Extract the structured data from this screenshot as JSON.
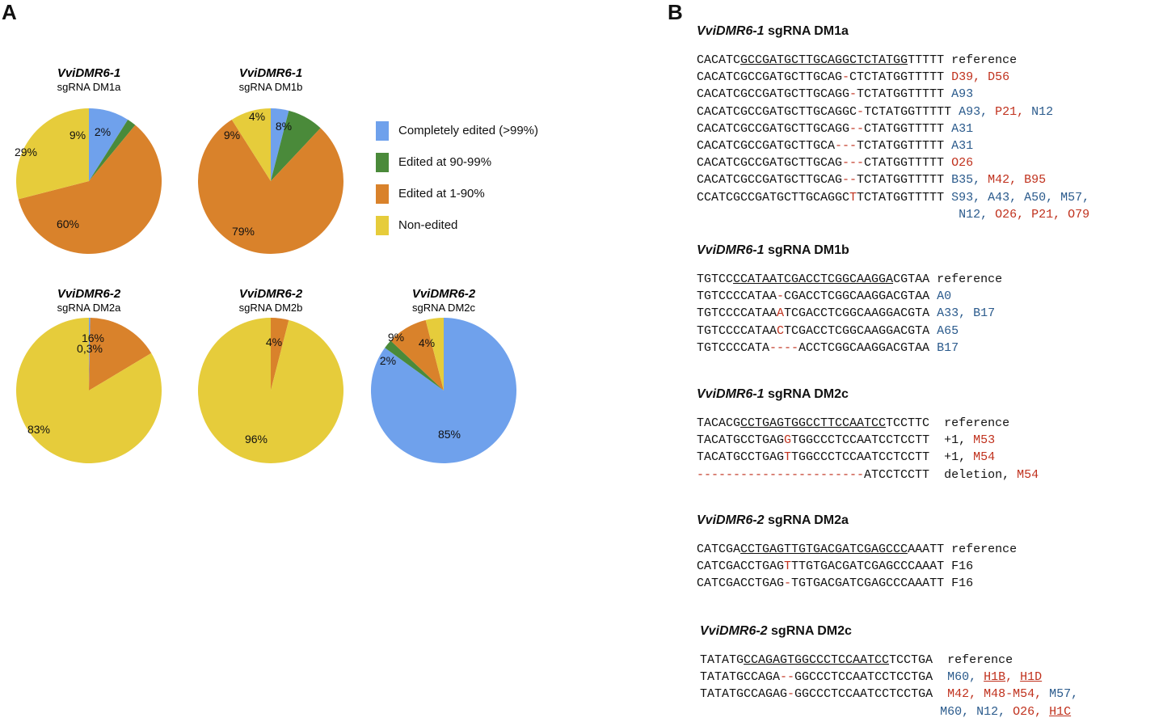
{
  "panels": {
    "a": "A",
    "b": "B"
  },
  "legend": [
    {
      "label": "Completely edited (>99%)",
      "color": "#6fa1ec"
    },
    {
      "label": "Edited at 90-99%",
      "color": "#4a8a3a"
    },
    {
      "label": "Edited at 1-90%",
      "color": "#d9822b"
    },
    {
      "label": "Non-edited",
      "color": "#e6cc3b"
    }
  ],
  "chart_data": [
    {
      "type": "pie",
      "title": "VviDMR6-1",
      "subtitle": "sgRNA DM1a",
      "categories": [
        "Completely edited (>99%)",
        "Edited at 90-99%",
        "Edited at 1-90%",
        "Non-edited"
      ],
      "values": [
        9,
        2,
        60,
        29
      ],
      "labels": [
        "9%",
        "2%",
        "60%",
        "29%"
      ]
    },
    {
      "type": "pie",
      "title": "VviDMR6-1",
      "subtitle": "sgRNA DM1b",
      "categories": [
        "Completely edited (>99%)",
        "Edited at 90-99%",
        "Edited at 1-90%",
        "Non-edited"
      ],
      "values": [
        4,
        8,
        79,
        9
      ],
      "labels": [
        "4%",
        "8%",
        "79%",
        "9%"
      ]
    },
    {
      "type": "pie",
      "title": "VviDMR6-2",
      "subtitle": "sgRNA DM2a",
      "categories": [
        "Completely edited (>99%)",
        "Edited at 90-99%",
        "Edited at 1-90%",
        "Non-edited"
      ],
      "values": [
        0.3,
        0,
        16,
        83
      ],
      "labels": [
        "0,3%",
        "",
        "16%",
        "83%"
      ]
    },
    {
      "type": "pie",
      "title": "VviDMR6-2",
      "subtitle": "sgRNA DM2b",
      "categories": [
        "Completely edited (>99%)",
        "Edited at 90-99%",
        "Edited at 1-90%",
        "Non-edited"
      ],
      "values": [
        0,
        0,
        4,
        96
      ],
      "labels": [
        "",
        "",
        "4%",
        "96%"
      ]
    },
    {
      "type": "pie",
      "title": "VviDMR6-2",
      "subtitle": "sgRNA DM2c",
      "categories": [
        "Completely edited (>99%)",
        "Edited at 90-99%",
        "Edited at 1-90%",
        "Non-edited"
      ],
      "values": [
        85,
        2,
        9,
        4
      ],
      "labels": [
        "85%",
        "2%",
        "9%",
        "4%"
      ]
    }
  ],
  "sequences": [
    {
      "gene": "VviDMR6-1",
      "guide": "sgRNA DM1a",
      "rows": [
        [
          [
            "CACATC",
            ""
          ],
          [
            "GCCGATGCTTGCAGGCTCTATGG",
            "u"
          ],
          [
            "TTTTT ",
            ""
          ],
          [
            "reference",
            ""
          ]
        ],
        [
          [
            "CACATCGCCGATGCTTGCAG",
            ""
          ],
          [
            "-",
            "red"
          ],
          [
            "CTCTATGGTTTTT ",
            ""
          ],
          [
            "D39, D56",
            "red"
          ]
        ],
        [
          [
            "CACATCGCCGATGCTTGCAGG",
            ""
          ],
          [
            "-",
            "red"
          ],
          [
            "TCTATGGTTTTT ",
            ""
          ],
          [
            "A93",
            "blue"
          ]
        ],
        [
          [
            "CACATCGCCGATGCTTGCAGGC",
            ""
          ],
          [
            "-",
            "red"
          ],
          [
            "TCTATGGTTTTT ",
            ""
          ],
          [
            "A93, ",
            "blue"
          ],
          [
            "P21, ",
            "red"
          ],
          [
            "N12",
            "blue"
          ]
        ],
        [
          [
            "CACATCGCCGATGCTTGCAGG",
            ""
          ],
          [
            "--",
            "red"
          ],
          [
            "CTATGGTTTTT ",
            ""
          ],
          [
            "A31",
            "blue"
          ]
        ],
        [
          [
            "CACATCGCCGATGCTTGCA",
            ""
          ],
          [
            "---",
            "red"
          ],
          [
            "TCTATGGTTTTT ",
            ""
          ],
          [
            "A31",
            "blue"
          ]
        ],
        [
          [
            "CACATCGCCGATGCTTGCAG",
            ""
          ],
          [
            "---",
            "red"
          ],
          [
            "CTATGGTTTTT ",
            ""
          ],
          [
            "O26",
            "red"
          ]
        ],
        [
          [
            "CACATCGCCGATGCTTGCAG",
            ""
          ],
          [
            "--",
            "red"
          ],
          [
            "TCTATGGTTTTT ",
            ""
          ],
          [
            "B35, ",
            "blue"
          ],
          [
            "M42, B95",
            "red"
          ]
        ],
        [
          [
            "CCATCGCCGATGCTTGCAGGC",
            ""
          ],
          [
            "T",
            "red"
          ],
          [
            "TCTATGGTTTTT ",
            ""
          ],
          [
            "S93, A43, A50, M57,",
            "blue"
          ]
        ],
        [
          [
            "                                    ",
            ""
          ],
          [
            "N12, ",
            "blue"
          ],
          [
            "O26, P21, O79",
            "red"
          ]
        ]
      ]
    },
    {
      "gene": "VviDMR6-1",
      "guide": "sgRNA DM1b",
      "rows": [
        [
          [
            "TGTCC",
            ""
          ],
          [
            "CCATAATCGACCTCGGCAAGGA",
            "u"
          ],
          [
            "CGTAA ",
            ""
          ],
          [
            "reference",
            ""
          ]
        ],
        [
          [
            "TGTCCCCATAA",
            ""
          ],
          [
            "-",
            "red"
          ],
          [
            "CGACCTCGGCAAGGACGTAA ",
            ""
          ],
          [
            "A0",
            "blue"
          ]
        ],
        [
          [
            "TGTCCCCATAA",
            ""
          ],
          [
            "A",
            "red"
          ],
          [
            "TCGACCTCGGCAAGGACGTA ",
            ""
          ],
          [
            "A33, B17",
            "blue"
          ]
        ],
        [
          [
            "TGTCCCCATAA",
            ""
          ],
          [
            "C",
            "red"
          ],
          [
            "TCGACCTCGGCAAGGACGTA ",
            ""
          ],
          [
            "A65",
            "blue"
          ]
        ],
        [
          [
            "TGTCCCCATA",
            ""
          ],
          [
            "----",
            "red"
          ],
          [
            "ACCTCGGCAAGGACGTAA ",
            ""
          ],
          [
            "B17",
            "blue"
          ]
        ]
      ]
    },
    {
      "gene": "VviDMR6-1",
      "guide": "sgRNA DM2c",
      "rows": [
        [
          [
            "TACACG",
            ""
          ],
          [
            "CCTGAGTGGCCTTCCAATCC",
            "u"
          ],
          [
            "TCCTTC  ",
            ""
          ],
          [
            "reference",
            ""
          ]
        ],
        [
          [
            "TACATGCCTGAG",
            ""
          ],
          [
            "G",
            "red"
          ],
          [
            "TGGCCCTCCAATCCTCCTT  ",
            ""
          ],
          [
            "+1, ",
            ""
          ],
          [
            "M53",
            "red"
          ]
        ],
        [
          [
            "TACATGCCTGAG",
            ""
          ],
          [
            "T",
            "red"
          ],
          [
            "TGGCCCTCCAATCCTCCTT  ",
            ""
          ],
          [
            "+1, ",
            ""
          ],
          [
            "M54",
            "red"
          ]
        ],
        [
          [
            "-----------------------",
            "red"
          ],
          [
            "ATCCTCCTT  ",
            ""
          ],
          [
            "deletion, ",
            ""
          ],
          [
            "M54",
            "red"
          ]
        ]
      ]
    },
    {
      "gene": "VviDMR6-2",
      "guide": "sgRNA DM2a",
      "rows": [
        [
          [
            "CATCGA",
            ""
          ],
          [
            "CCTGAGTTGTGACGATCGAGCCC",
            "u"
          ],
          [
            "AAATT ",
            ""
          ],
          [
            "reference",
            ""
          ]
        ],
        [
          [
            "CATCGACCTGAG",
            ""
          ],
          [
            "T",
            "red"
          ],
          [
            "TTGTGACGATCGAGCCCAAAT ",
            ""
          ],
          [
            "F16",
            ""
          ]
        ],
        [
          [
            "CATCGACCTGAG",
            ""
          ],
          [
            "-",
            "red"
          ],
          [
            "TGTGACGATCGAGCCCAAATT ",
            ""
          ],
          [
            "F16",
            ""
          ]
        ]
      ]
    },
    {
      "gene": "VviDMR6-2",
      "guide": "sgRNA DM2c",
      "rows": [
        [
          [
            "TATATG",
            ""
          ],
          [
            "CCAGAGTGGCCCTCCAATCC",
            "u"
          ],
          [
            "TCCTGA  ",
            ""
          ],
          [
            "reference",
            ""
          ]
        ],
        [
          [
            "TATATGCCAGA",
            ""
          ],
          [
            "--",
            "red"
          ],
          [
            "GGCCCTCCAATCCTCCTGA  ",
            ""
          ],
          [
            "M60, ",
            "blue"
          ],
          [
            "H1B",
            "red u"
          ],
          [
            ", ",
            "red"
          ],
          [
            "H1D",
            "red u"
          ]
        ],
        [
          [
            "TATATGCCAGAG",
            ""
          ],
          [
            "-",
            "red"
          ],
          [
            "GGCCCTCCAATCCTCCTGA  ",
            ""
          ],
          [
            "M42, M48-M54, ",
            "red"
          ],
          [
            "M57,",
            "blue"
          ]
        ],
        [
          [
            "                                 ",
            ""
          ],
          [
            "M60, N12, ",
            "blue"
          ],
          [
            "O26, ",
            "red"
          ],
          [
            "H1C",
            "red u"
          ]
        ]
      ]
    }
  ]
}
